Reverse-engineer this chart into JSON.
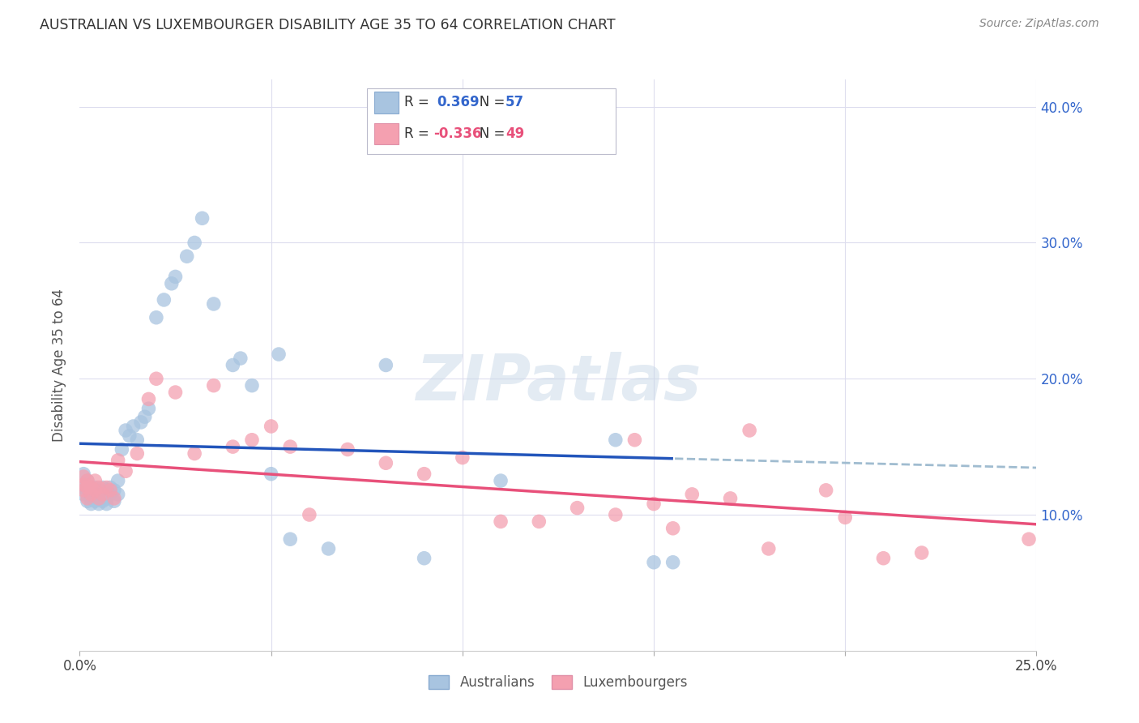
{
  "title": "AUSTRALIAN VS LUXEMBOURGER DISABILITY AGE 35 TO 64 CORRELATION CHART",
  "source": "Source: ZipAtlas.com",
  "ylabel": "Disability Age 35 to 64",
  "xmin": 0.0,
  "xmax": 0.25,
  "ymin": 0.0,
  "ymax": 0.42,
  "aus_R": 0.369,
  "aus_N": 57,
  "lux_R": -0.336,
  "lux_N": 49,
  "aus_color": "#a8c4e0",
  "lux_color": "#f4a0b0",
  "aus_line_color": "#2255bb",
  "lux_line_color": "#e8507a",
  "dashed_line_color": "#a0bcd0",
  "watermark": "ZIPatlas",
  "legend_aus_label": "Australians",
  "legend_lux_label": "Luxembourgers",
  "aus_x": [
    0.001,
    0.001,
    0.001,
    0.002,
    0.002,
    0.002,
    0.002,
    0.003,
    0.003,
    0.003,
    0.004,
    0.004,
    0.004,
    0.005,
    0.005,
    0.005,
    0.006,
    0.006,
    0.006,
    0.007,
    0.007,
    0.007,
    0.008,
    0.008,
    0.009,
    0.009,
    0.01,
    0.01,
    0.011,
    0.012,
    0.013,
    0.014,
    0.015,
    0.016,
    0.017,
    0.018,
    0.02,
    0.022,
    0.024,
    0.025,
    0.028,
    0.03,
    0.032,
    0.035,
    0.04,
    0.042,
    0.045,
    0.05,
    0.052,
    0.055,
    0.065,
    0.08,
    0.09,
    0.11,
    0.14,
    0.15,
    0.155
  ],
  "aus_y": [
    0.115,
    0.12,
    0.13,
    0.11,
    0.115,
    0.12,
    0.125,
    0.108,
    0.112,
    0.118,
    0.11,
    0.115,
    0.12,
    0.108,
    0.112,
    0.118,
    0.11,
    0.115,
    0.12,
    0.108,
    0.112,
    0.118,
    0.115,
    0.12,
    0.11,
    0.118,
    0.115,
    0.125,
    0.148,
    0.162,
    0.158,
    0.165,
    0.155,
    0.168,
    0.172,
    0.178,
    0.245,
    0.258,
    0.27,
    0.275,
    0.29,
    0.3,
    0.318,
    0.255,
    0.21,
    0.215,
    0.195,
    0.13,
    0.218,
    0.082,
    0.075,
    0.21,
    0.068,
    0.125,
    0.155,
    0.065,
    0.065
  ],
  "lux_x": [
    0.001,
    0.001,
    0.001,
    0.002,
    0.002,
    0.002,
    0.003,
    0.003,
    0.004,
    0.004,
    0.005,
    0.005,
    0.006,
    0.007,
    0.008,
    0.009,
    0.01,
    0.012,
    0.015,
    0.018,
    0.02,
    0.025,
    0.03,
    0.035,
    0.04,
    0.045,
    0.05,
    0.055,
    0.06,
    0.07,
    0.08,
    0.09,
    0.1,
    0.11,
    0.12,
    0.13,
    0.14,
    0.145,
    0.15,
    0.155,
    0.16,
    0.17,
    0.175,
    0.18,
    0.195,
    0.2,
    0.21,
    0.22,
    0.248
  ],
  "lux_y": [
    0.118,
    0.122,
    0.128,
    0.112,
    0.12,
    0.125,
    0.115,
    0.12,
    0.118,
    0.125,
    0.112,
    0.12,
    0.115,
    0.12,
    0.118,
    0.112,
    0.14,
    0.132,
    0.145,
    0.185,
    0.2,
    0.19,
    0.145,
    0.195,
    0.15,
    0.155,
    0.165,
    0.15,
    0.1,
    0.148,
    0.138,
    0.13,
    0.142,
    0.095,
    0.095,
    0.105,
    0.1,
    0.155,
    0.108,
    0.09,
    0.115,
    0.112,
    0.162,
    0.075,
    0.118,
    0.098,
    0.068,
    0.072,
    0.082
  ]
}
